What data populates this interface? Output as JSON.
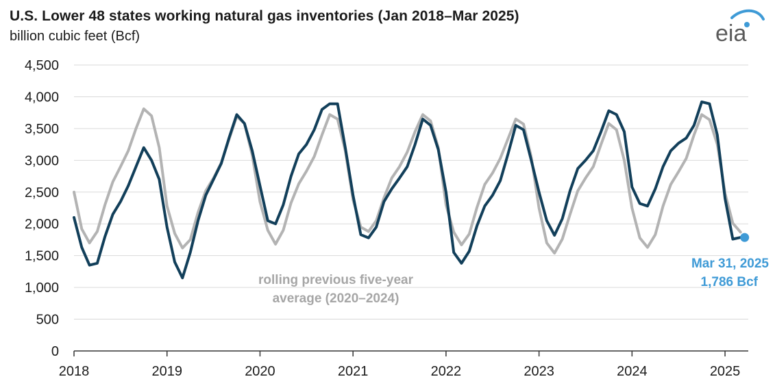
{
  "header": {
    "title": "U.S. Lower 48 states working natural gas inventories (Jan 2018–Mar 2025)",
    "subtitle": "billion cubic feet (Bcf)",
    "logo_text": "eia"
  },
  "colors": {
    "inventory": "#123f5a",
    "average": "#b3b3b3",
    "endpoint": "#3e9ad6",
    "logo_swoosh": "#3e9ad6",
    "grid": "#d9d9d9"
  },
  "annotations": {
    "average_label_line1": "rolling previous five-year",
    "average_label_line2": "average (2020–2024)",
    "endpoint_label_line1": "Mar 31, 2025",
    "endpoint_label_line2": "1,786 Bcf"
  },
  "chart_data": {
    "type": "line",
    "title": "U.S. Lower 48 states working natural gas inventories (Jan 2018–Mar 2025)",
    "ylabel": "billion cubic feet (Bcf)",
    "xlabel": "",
    "ylim": [
      0,
      4500
    ],
    "yticks": [
      0,
      500,
      1000,
      1500,
      2000,
      2500,
      3000,
      3500,
      4000,
      4500
    ],
    "ytick_labels": [
      "0",
      "500",
      "1,000",
      "1,500",
      "2,000",
      "2,500",
      "3,000",
      "3,500",
      "4,000",
      "4,500"
    ],
    "xlim": [
      "2018-01",
      "2025-04"
    ],
    "xticks": [
      "2018-01",
      "2019-01",
      "2020-01",
      "2021-01",
      "2022-01",
      "2023-01",
      "2024-01",
      "2025-01"
    ],
    "xtick_labels": [
      "2018",
      "2019",
      "2020",
      "2021",
      "2022",
      "2023",
      "2024",
      "2025"
    ],
    "grid": "horizontal",
    "x": [
      "2018-01",
      "2018-02",
      "2018-03",
      "2018-04",
      "2018-05",
      "2018-06",
      "2018-07",
      "2018-08",
      "2018-09",
      "2018-10",
      "2018-11",
      "2018-12",
      "2019-01",
      "2019-02",
      "2019-03",
      "2019-04",
      "2019-05",
      "2019-06",
      "2019-07",
      "2019-08",
      "2019-09",
      "2019-10",
      "2019-11",
      "2019-12",
      "2020-01",
      "2020-02",
      "2020-03",
      "2020-04",
      "2020-05",
      "2020-06",
      "2020-07",
      "2020-08",
      "2020-09",
      "2020-10",
      "2020-11",
      "2020-12",
      "2021-01",
      "2021-02",
      "2021-03",
      "2021-04",
      "2021-05",
      "2021-06",
      "2021-07",
      "2021-08",
      "2021-09",
      "2021-10",
      "2021-11",
      "2021-12",
      "2022-01",
      "2022-02",
      "2022-03",
      "2022-04",
      "2022-05",
      "2022-06",
      "2022-07",
      "2022-08",
      "2022-09",
      "2022-10",
      "2022-11",
      "2022-12",
      "2023-01",
      "2023-02",
      "2023-03",
      "2023-04",
      "2023-05",
      "2023-06",
      "2023-07",
      "2023-08",
      "2023-09",
      "2023-10",
      "2023-11",
      "2023-12",
      "2024-01",
      "2024-02",
      "2024-03",
      "2024-04",
      "2024-05",
      "2024-06",
      "2024-07",
      "2024-08",
      "2024-09",
      "2024-10",
      "2024-11",
      "2024-12",
      "2025-01",
      "2025-02",
      "2025-03"
    ],
    "series": [
      {
        "values": [
          2100,
          1630,
          1350,
          1380,
          1800,
          2150,
          2350,
          2600,
          2900,
          3200,
          3000,
          2700,
          1950,
          1400,
          1150,
          1550,
          2050,
          2450,
          2700,
          2950,
          3350,
          3720,
          3580,
          3150,
          2600,
          2050,
          2000,
          2300,
          2750,
          3100,
          3250,
          3480,
          3800,
          3890,
          3890,
          3200,
          2450,
          1830,
          1780,
          1950,
          2350,
          2550,
          2720,
          2900,
          3250,
          3650,
          3550,
          3170,
          2500,
          1550,
          1380,
          1570,
          1970,
          2280,
          2450,
          2680,
          3100,
          3550,
          3480,
          3000,
          2500,
          2050,
          1820,
          2080,
          2520,
          2870,
          3000,
          3150,
          3450,
          3780,
          3720,
          3450,
          2580,
          2320,
          2280,
          2550,
          2900,
          3150,
          3270,
          3350,
          3550,
          3920,
          3890,
          3400,
          2400,
          1760,
          1786
        ]
      },
      {
        "values": [
          2500,
          1920,
          1700,
          1880,
          2300,
          2660,
          2900,
          3150,
          3500,
          3810,
          3700,
          3200,
          2280,
          1850,
          1620,
          1750,
          2180,
          2520,
          2720,
          2960,
          3330,
          3690,
          3580,
          3080,
          2350,
          1900,
          1680,
          1900,
          2330,
          2630,
          2830,
          3060,
          3400,
          3720,
          3650,
          3150,
          2380,
          1950,
          1880,
          2050,
          2410,
          2720,
          2900,
          3130,
          3450,
          3720,
          3620,
          3200,
          2300,
          1870,
          1670,
          1840,
          2260,
          2620,
          2800,
          3030,
          3340,
          3650,
          3570,
          3050,
          2250,
          1700,
          1540,
          1760,
          2150,
          2520,
          2720,
          2900,
          3250,
          3580,
          3480,
          3000,
          2250,
          1780,
          1630,
          1830,
          2280,
          2620,
          2820,
          3030,
          3400,
          3720,
          3640,
          3250,
          2480,
          2010,
          1870
        ]
      }
    ],
    "endpoint": {
      "x": "2025-03",
      "y": 1786
    }
  }
}
